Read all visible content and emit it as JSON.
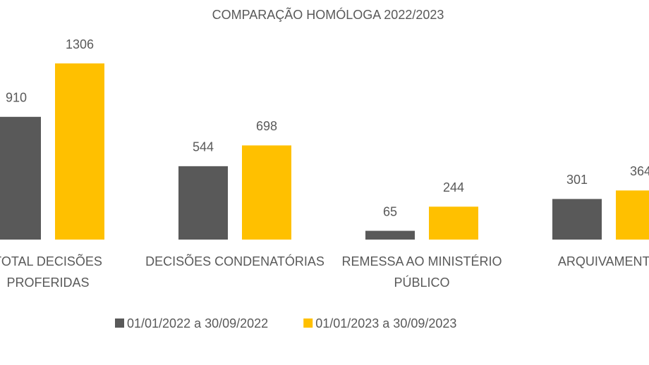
{
  "chart_data": {
    "type": "bar",
    "title": "COMPARAÇÃO HOMÓLOGA 2022/2023",
    "categories": [
      "TOTAL DECISÕES PROFERIDAS",
      "DECISÕES CONDENATÓRIAS",
      "REMESSA AO MINISTÉRIO PÚBLICO",
      "ARQUIVAMENTO"
    ],
    "series": [
      {
        "name": "01/01/2022 a 30/09/2022",
        "color": "#595959",
        "values": [
          910,
          544,
          65,
          301
        ]
      },
      {
        "name": "01/01/2023 a 30/09/2023",
        "color": "#ffc000",
        "values": [
          1306,
          698,
          244,
          364
        ]
      }
    ],
    "legend": "bottom"
  }
}
